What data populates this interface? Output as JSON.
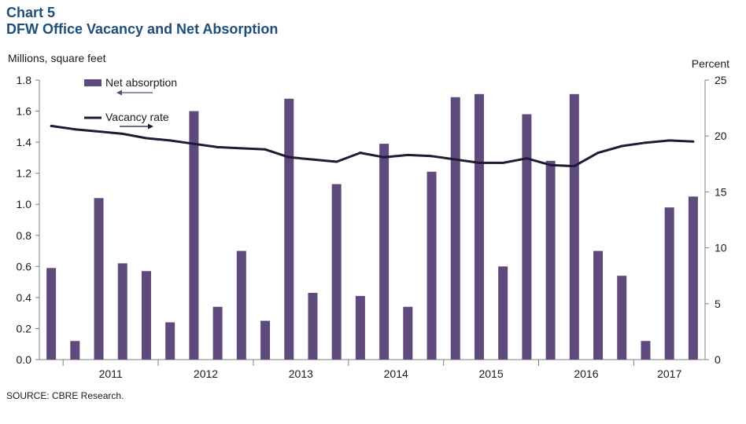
{
  "header": {
    "chart_number": "Chart 5",
    "title": "DFW Office Vacancy and Net Absorption"
  },
  "footer": {
    "source": "SOURCE: CBRE Research."
  },
  "colors": {
    "bar": "#5e4a7c",
    "line": "#1e1b33",
    "title": "#1f4e79",
    "axis": "#7f7f7f"
  },
  "chart_data": {
    "type": "bar",
    "title": "DFW Office Vacancy and Net Absorption",
    "left_axis_label": "Millions, square feet",
    "right_axis_label": "Percent",
    "ylim_left": [
      0,
      1.8
    ],
    "ylim_right": [
      0,
      25
    ],
    "left_ticks": [
      "0.0",
      "0.2",
      "0.4",
      "0.6",
      "0.8",
      "1.0",
      "1.2",
      "1.4",
      "1.6",
      "1.8"
    ],
    "right_ticks": [
      "0",
      "5",
      "10",
      "15",
      "20",
      "25"
    ],
    "year_labels": [
      "2011",
      "2012",
      "2013",
      "2014",
      "2015",
      "2016",
      "2017"
    ],
    "quarters": [
      "2010Q4",
      "2011Q1",
      "2011Q2",
      "2011Q3",
      "2011Q4",
      "2012Q1",
      "2012Q2",
      "2012Q3",
      "2012Q4",
      "2013Q1",
      "2013Q2",
      "2013Q3",
      "2013Q4",
      "2014Q1",
      "2014Q2",
      "2014Q3",
      "2014Q4",
      "2015Q1",
      "2015Q2",
      "2015Q3",
      "2015Q4",
      "2016Q1",
      "2016Q2",
      "2016Q3",
      "2016Q4",
      "2017Q1",
      "2017Q2",
      "2017Q3"
    ],
    "legend_placement": "top-left",
    "grid": false,
    "series": [
      {
        "name": "Net absorption",
        "type": "bar",
        "axis": "left",
        "values": [
          0.59,
          0.12,
          1.04,
          0.62,
          0.57,
          0.24,
          1.6,
          0.34,
          0.7,
          0.25,
          1.68,
          0.43,
          1.13,
          0.41,
          1.39,
          0.34,
          1.21,
          1.69,
          1.71,
          0.6,
          1.58,
          1.28,
          1.71,
          0.7,
          0.54,
          0.12,
          0.98,
          1.05
        ]
      },
      {
        "name": "Vacancy rate",
        "type": "line",
        "axis": "right",
        "values": [
          20.9,
          20.6,
          20.4,
          20.2,
          19.8,
          19.6,
          19.3,
          19.0,
          18.9,
          18.8,
          18.1,
          17.9,
          17.7,
          18.5,
          18.1,
          18.3,
          18.2,
          17.9,
          17.6,
          17.6,
          18.0,
          17.4,
          17.3,
          18.5,
          19.1,
          19.4,
          19.6,
          19.5
        ]
      }
    ]
  }
}
